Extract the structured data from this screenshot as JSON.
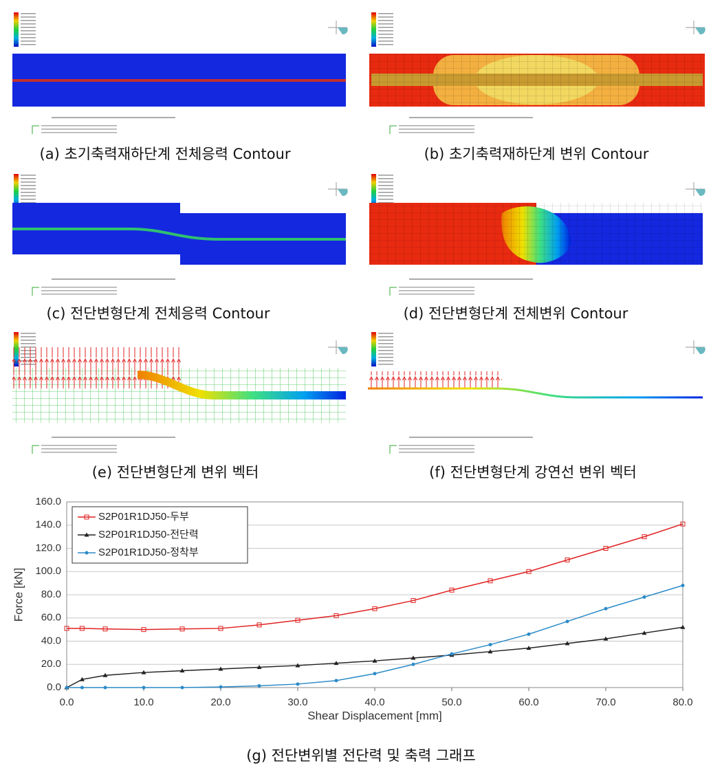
{
  "panels": [
    {
      "caption": "(a) 초기축력재하단계 전체응력 Contour"
    },
    {
      "caption": "(b) 초기축력재하단계 변위 Contour"
    },
    {
      "caption": "(c) 전단변형단계 전체응력 Contour"
    },
    {
      "caption": "(d) 전단변형단계 전체변위 Contour"
    },
    {
      "caption": "(e) 전단변형단계 변위 벡터"
    },
    {
      "caption": "(f) 전단변형단계 강연선 변위 벡터"
    }
  ],
  "chart_data": {
    "type": "line",
    "caption": "(g) 전단변위별 전단력 및 축력 그래프",
    "xlabel": "Shear Displacement [mm]",
    "ylabel": "Force [kN]",
    "x": [
      0,
      2,
      5,
      10,
      15,
      20,
      25,
      30,
      35,
      40,
      45,
      50,
      55,
      60,
      65,
      70,
      75,
      80
    ],
    "series": [
      {
        "name": "S2P01R1DJ50-두부",
        "color": "#e02020",
        "marker": "square",
        "values": [
          51,
          51,
          50.5,
          50,
          50.5,
          51,
          54,
          58,
          62,
          68,
          75,
          84,
          92,
          100,
          110,
          120,
          130,
          141
        ]
      },
      {
        "name": "S2P01R1DJ50-전단력",
        "color": "#222222",
        "marker": "triangle",
        "values": [
          0,
          7,
          10.5,
          13,
          14.5,
          16,
          17.5,
          19,
          21,
          23,
          25.5,
          28,
          31,
          34,
          38,
          42,
          47,
          52
        ]
      },
      {
        "name": "S2P01R1DJ50-정착부",
        "color": "#2a8ac8",
        "marker": "circle",
        "values": [
          0,
          0,
          0,
          0,
          0,
          0.5,
          1.5,
          3,
          6,
          12,
          20,
          29,
          37,
          46,
          57,
          68,
          78,
          88
        ]
      }
    ],
    "xlim": [
      0,
      80
    ],
    "xticks": [
      {
        "value": 0,
        "label": "0.0"
      },
      {
        "value": 10,
        "label": "10.0"
      },
      {
        "value": 20,
        "label": "20.0"
      },
      {
        "value": 30,
        "label": "30.0"
      },
      {
        "value": 40,
        "label": "40.0"
      },
      {
        "value": 50,
        "label": "50.0"
      },
      {
        "value": 60,
        "label": "60.0"
      },
      {
        "value": 70,
        "label": "70.0"
      },
      {
        "value": 80,
        "label": "80.0"
      }
    ],
    "ylim": [
      0,
      160
    ],
    "yticks": [
      {
        "value": 0,
        "label": "0.0"
      },
      {
        "value": 20,
        "label": "20.0"
      },
      {
        "value": 40,
        "label": "40.0"
      },
      {
        "value": 60,
        "label": "60.0"
      },
      {
        "value": 80,
        "label": "80.0"
      },
      {
        "value": 100,
        "label": "100.0"
      },
      {
        "value": 120,
        "label": "120.0"
      },
      {
        "value": 140,
        "label": "140.0"
      },
      {
        "value": 160,
        "label": "160.0"
      }
    ],
    "grid": true,
    "legend": "upper left"
  }
}
